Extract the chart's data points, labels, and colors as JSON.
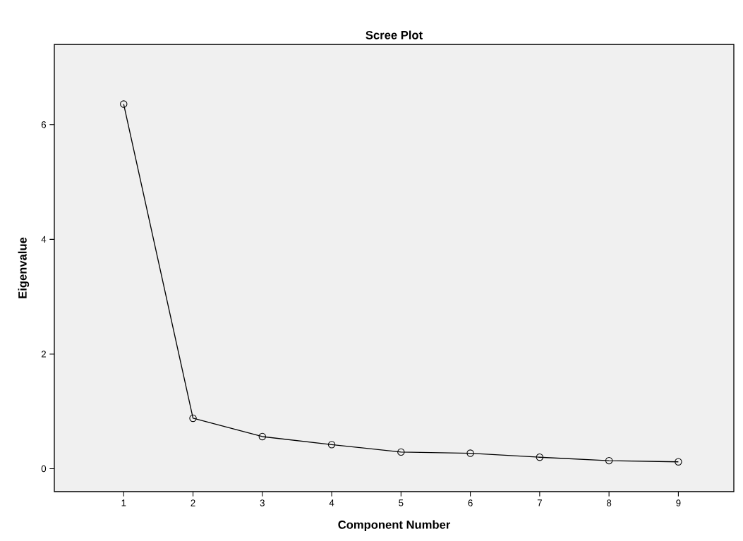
{
  "chart_data": {
    "type": "line",
    "title": "Scree Plot",
    "xlabel": "Component Number",
    "ylabel": "Eigenvalue",
    "x": [
      1,
      2,
      3,
      4,
      5,
      6,
      7,
      8,
      9
    ],
    "values": [
      6.36,
      0.88,
      0.56,
      0.42,
      0.29,
      0.27,
      0.2,
      0.14,
      0.12
    ],
    "color": "#000000",
    "marker": "circle",
    "line_style": "solid",
    "xlim": [
      0,
      9.8
    ],
    "xticks": [
      1,
      2,
      3,
      4,
      5,
      6,
      7,
      8,
      9
    ],
    "ylim": [
      -0.4,
      7.4
    ],
    "yticks": [
      0,
      2,
      4,
      6
    ]
  }
}
